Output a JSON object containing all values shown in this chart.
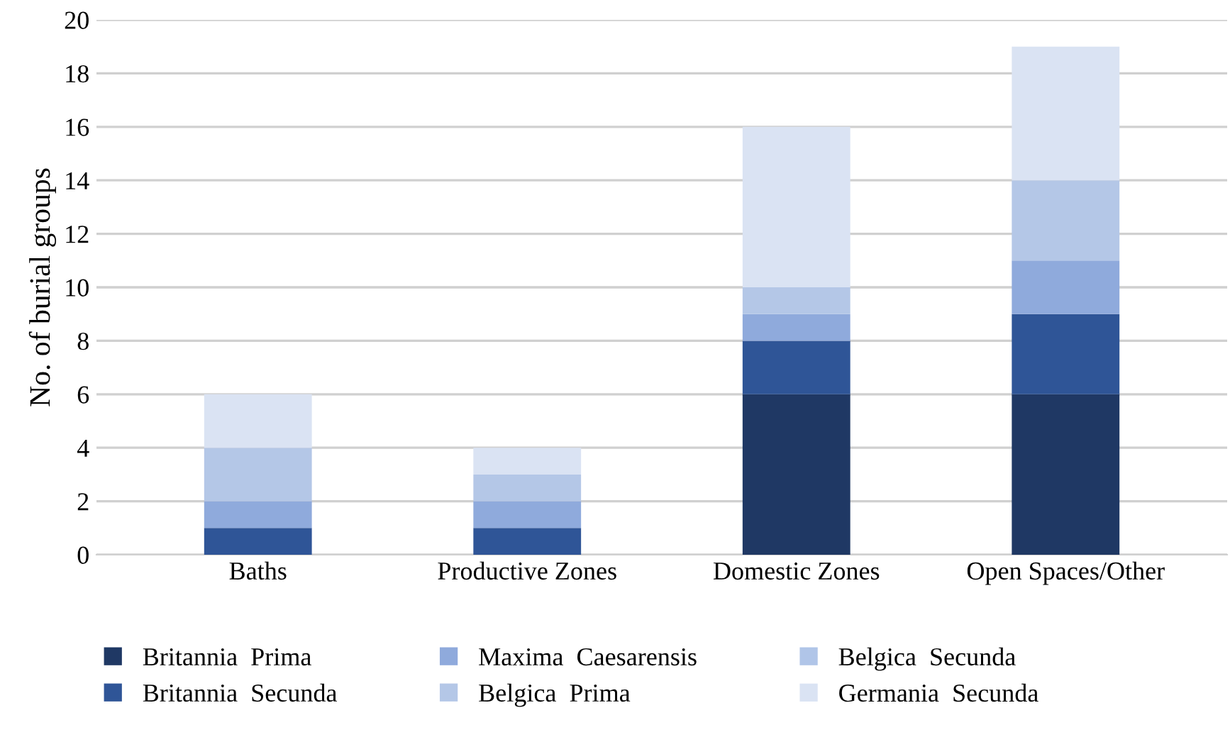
{
  "chart_data": {
    "type": "bar",
    "stacked": true,
    "ylabel": "No. of burial groups",
    "categories": [
      "Baths",
      "Productive Zones",
      "Domestic Zones",
      "Open Spaces/Other"
    ],
    "series": [
      {
        "name": "Britannia  Prima",
        "color": "#1f3864",
        "values": [
          0,
          0,
          6,
          6
        ]
      },
      {
        "name": "Britannia  Secunda",
        "color": "#2f5597",
        "values": [
          1,
          1,
          2,
          3
        ]
      },
      {
        "name": "Maxima  Caesarensis",
        "color": "#8faadc",
        "values": [
          1,
          1,
          1,
          2
        ]
      },
      {
        "name": "Belgica  Prima",
        "color": "#b4c7e7",
        "values": [
          2,
          1,
          1,
          3
        ]
      },
      {
        "name": "Belgica  Secunda",
        "color": "#b0c5e8",
        "values": [
          0,
          0,
          0,
          0
        ]
      },
      {
        "name": "Germania  Secunda",
        "color": "#dae3f3",
        "values": [
          2,
          1,
          6,
          5
        ]
      }
    ],
    "ylim": [
      0,
      20
    ],
    "yticks": [
      0,
      2,
      4,
      6,
      8,
      10,
      12,
      14,
      16,
      18,
      20
    ],
    "grid": "y",
    "legend": "bottom"
  }
}
